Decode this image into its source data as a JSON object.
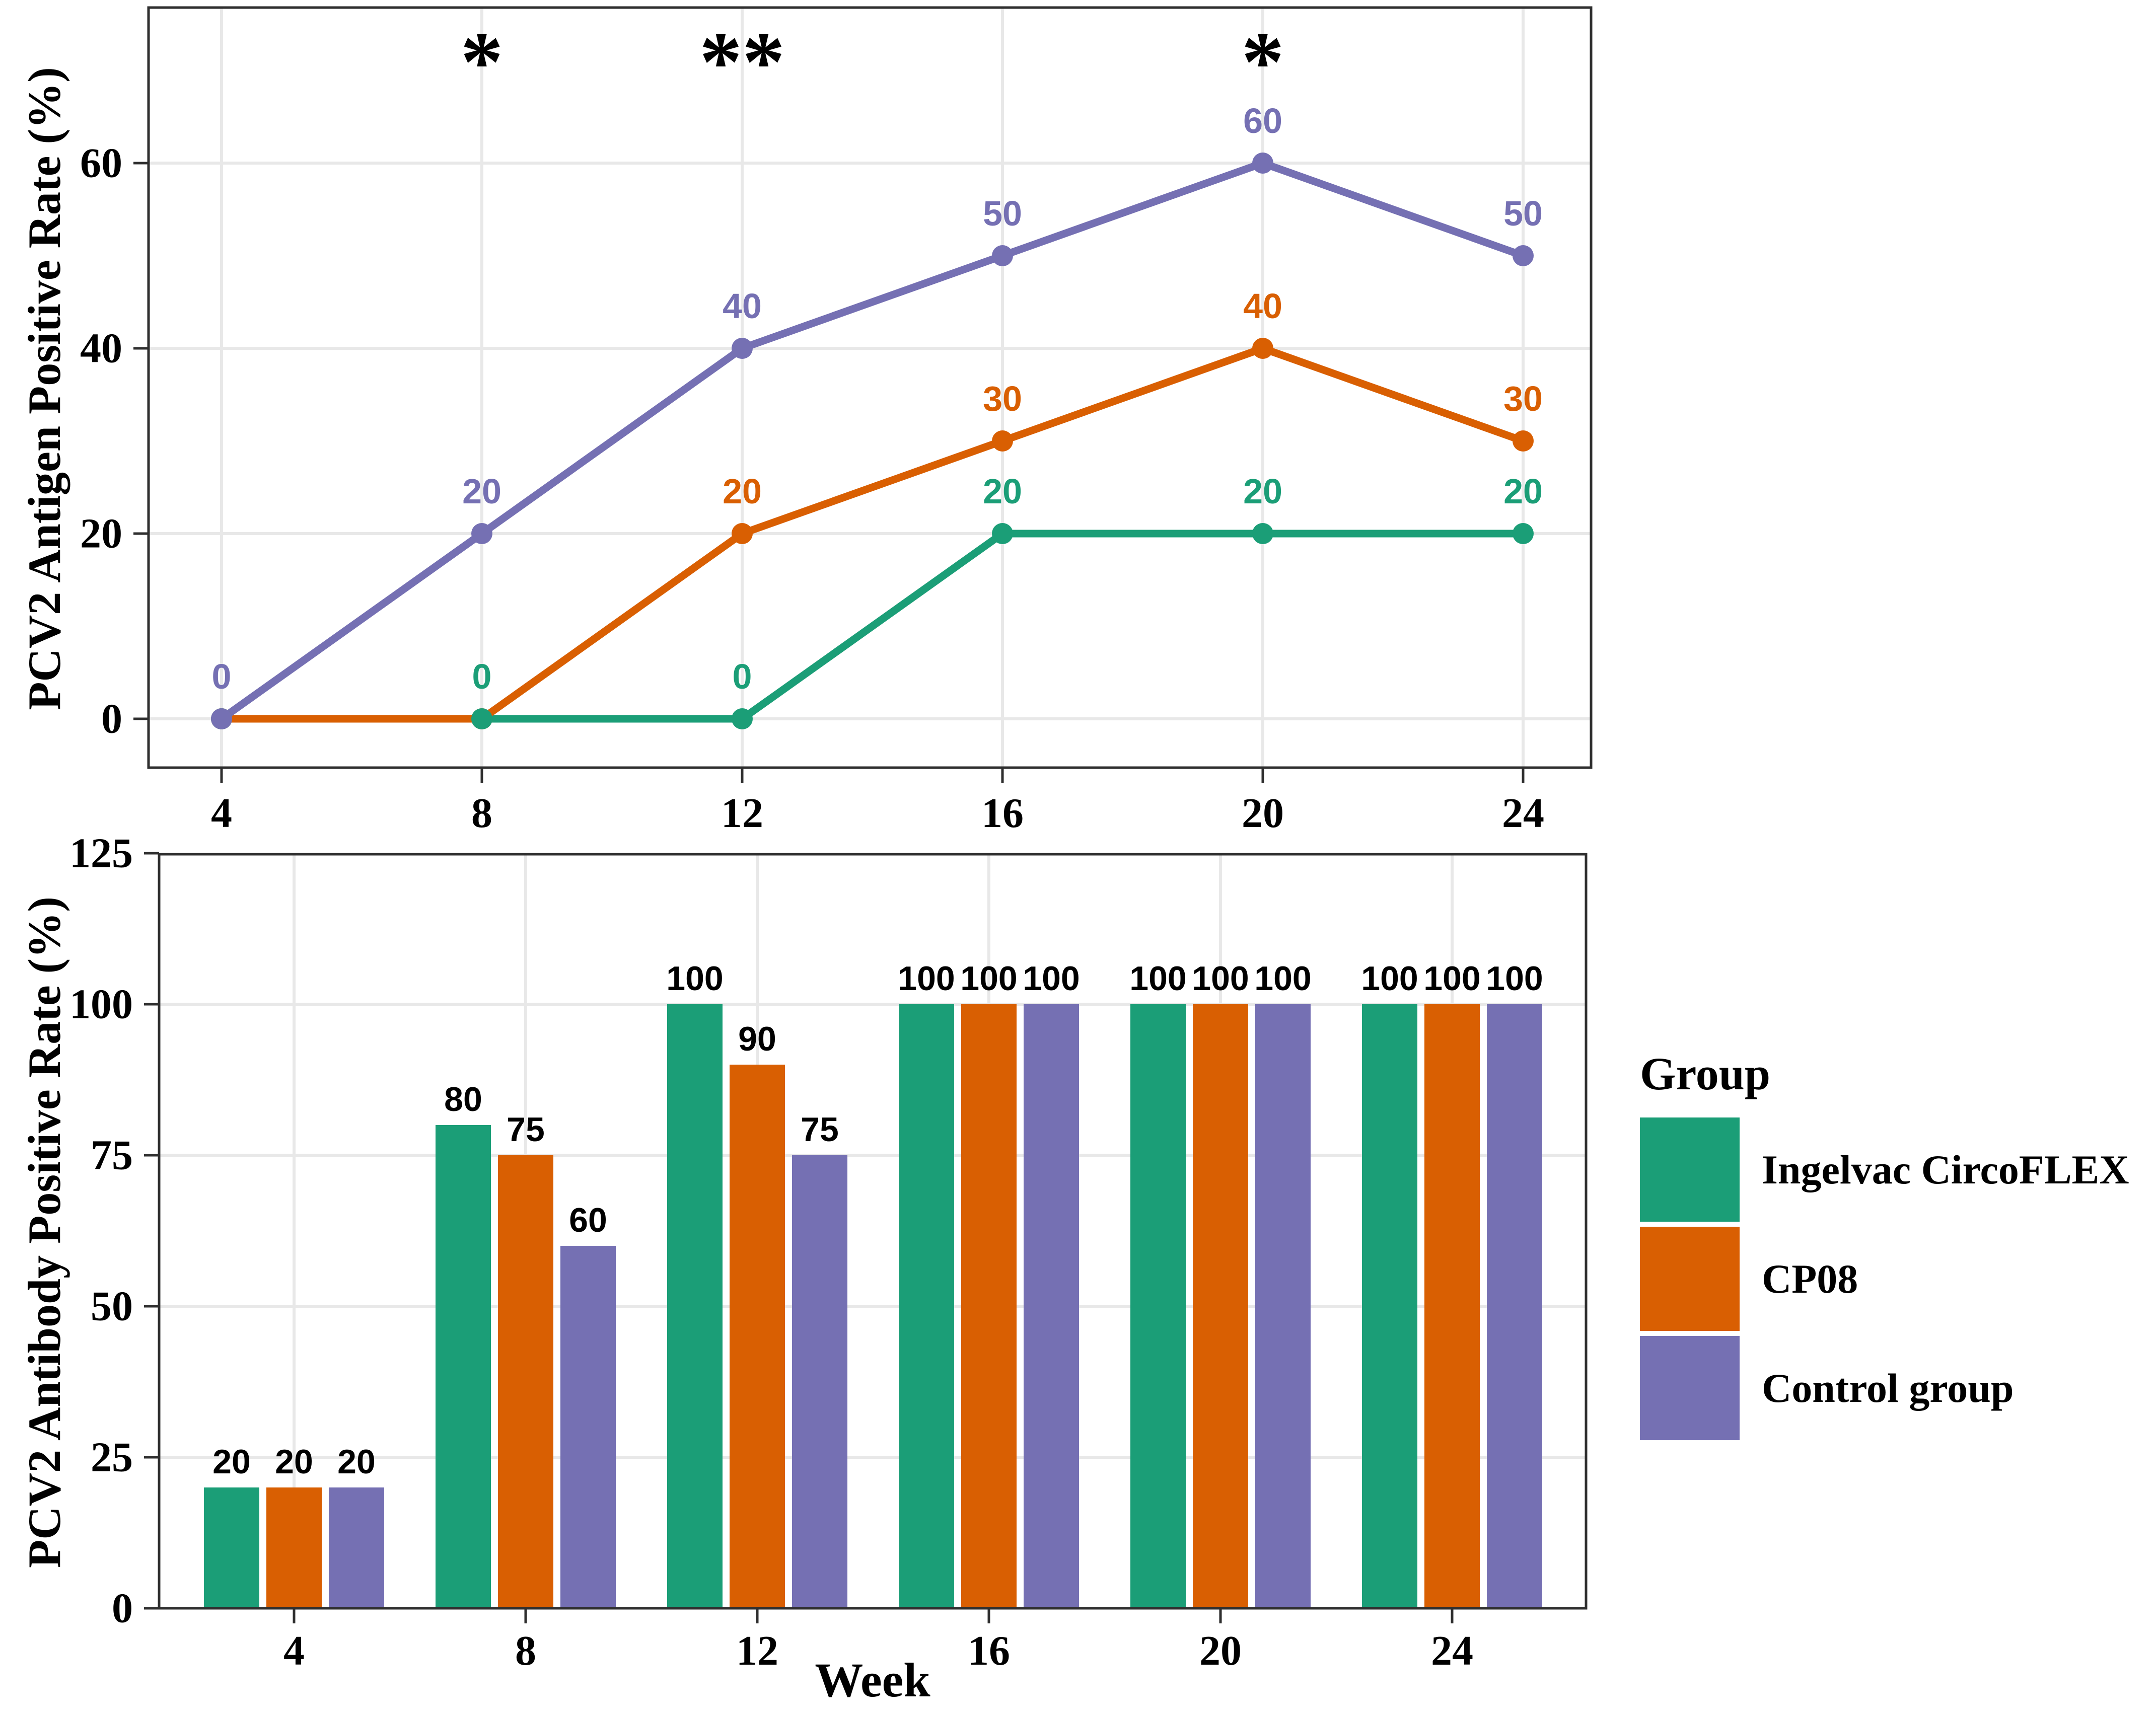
{
  "colors": {
    "green": "#1B9E77",
    "orange": "#D95F02",
    "purple": "#7570B3",
    "grid": "#E8E8E8",
    "axis": "#2F2F2F",
    "text": "#000000",
    "background": "#FFFFFF"
  },
  "chart_data": [
    {
      "type": "line",
      "title": "",
      "xlabel": "",
      "ylabel": "PCV2 Antigen Positive Rate (%)",
      "x": [
        4,
        8,
        12,
        16,
        20,
        24
      ],
      "yticks": [
        0,
        20,
        40,
        60
      ],
      "ylim": [
        0,
        60
      ],
      "grid": "on",
      "series": [
        {
          "name": "Ingelvac CircoFLEX",
          "color_key": "green",
          "values": [
            0,
            0,
            0,
            20,
            20,
            20
          ],
          "point_labels": [
            null,
            "0",
            "0",
            "20",
            "20",
            "20"
          ]
        },
        {
          "name": "CP08",
          "color_key": "orange",
          "values": [
            0,
            0,
            20,
            30,
            40,
            30
          ],
          "point_labels": [
            null,
            null,
            "20",
            "30",
            "40",
            "30"
          ]
        },
        {
          "name": "Control group",
          "color_key": "purple",
          "values": [
            0,
            20,
            40,
            50,
            60,
            50
          ],
          "point_labels": [
            "0",
            "20",
            "40",
            "50",
            "60",
            "50"
          ]
        }
      ],
      "annotations": [
        {
          "x": 8,
          "text": "*"
        },
        {
          "x": 12,
          "text": "**"
        },
        {
          "x": 20,
          "text": "*"
        }
      ]
    },
    {
      "type": "bar",
      "title": "",
      "xlabel": "Week",
      "ylabel": "PCV2 Antibody Positive Rate (%)",
      "categories": [
        4,
        8,
        12,
        16,
        20,
        24
      ],
      "yticks": [
        0,
        25,
        50,
        75,
        100,
        125
      ],
      "ylim": [
        0,
        125
      ],
      "grid": "on",
      "legend_position": "right",
      "series": [
        {
          "name": "Ingelvac CircoFLEX",
          "color_key": "green",
          "values": [
            20,
            80,
            100,
            100,
            100,
            100
          ]
        },
        {
          "name": "CP08",
          "color_key": "orange",
          "values": [
            20,
            75,
            90,
            100,
            100,
            100
          ]
        },
        {
          "name": "Control group",
          "color_key": "purple",
          "values": [
            20,
            60,
            75,
            100,
            100,
            100
          ]
        }
      ]
    }
  ],
  "legend": {
    "title": "Group",
    "items": [
      {
        "label": "Ingelvac CircoFLEX",
        "color_key": "green"
      },
      {
        "label": "CP08",
        "color_key": "orange"
      },
      {
        "label": "Control group",
        "color_key": "purple"
      }
    ]
  }
}
